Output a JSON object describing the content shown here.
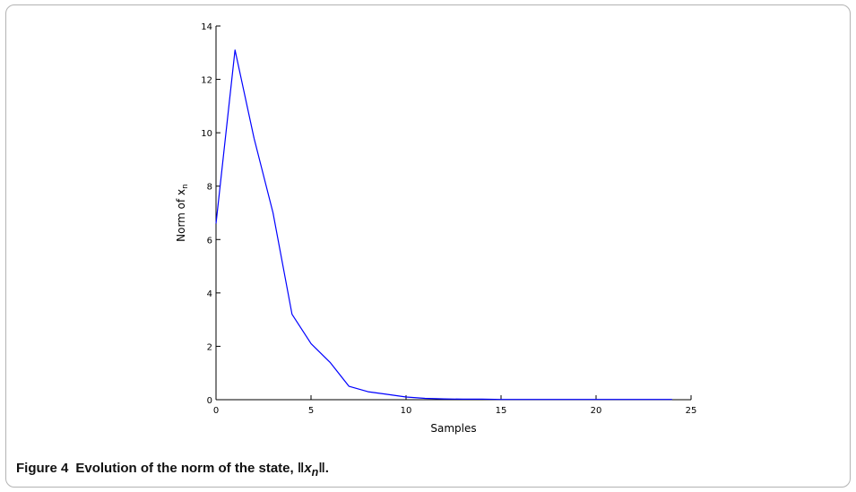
{
  "chart_data": {
    "type": "line",
    "xlabel": "Samples",
    "ylabel_base": "Norm of x",
    "ylabel_sub": "n",
    "xlim": [
      0,
      25
    ],
    "ylim": [
      0,
      14
    ],
    "x_ticks": [
      0,
      5,
      10,
      15,
      20,
      25
    ],
    "y_ticks": [
      0,
      2,
      4,
      6,
      8,
      10,
      12,
      14
    ],
    "grid": false,
    "line_color": "#0000ff",
    "series": [
      {
        "x": [
          0,
          1,
          2,
          3,
          4,
          5,
          6,
          7,
          8,
          9,
          10,
          11,
          12,
          13,
          14,
          15,
          16,
          17,
          18,
          19,
          20,
          21,
          22,
          23,
          24
        ],
        "values": [
          6.6,
          13.1,
          9.8,
          7.0,
          3.2,
          2.1,
          1.4,
          0.5,
          0.3,
          0.2,
          0.1,
          0.05,
          0.03,
          0.02,
          0.02,
          0.01,
          0.01,
          0.01,
          0.01,
          0.01,
          0.01,
          0.01,
          0.01,
          0.01,
          0.01
        ]
      }
    ]
  },
  "caption": {
    "label": "Figure 4",
    "text_before": "Evolution of the norm of the state, ",
    "norm_var": "x",
    "norm_sub": "n",
    "text_after": "."
  }
}
